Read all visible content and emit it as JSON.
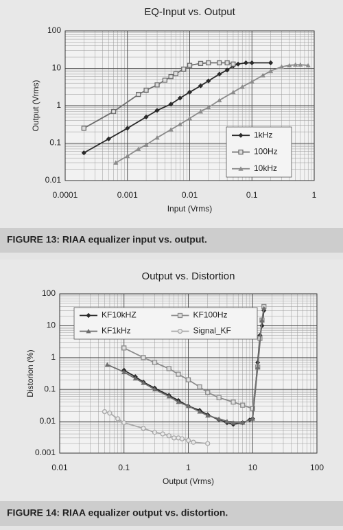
{
  "chart_data": [
    {
      "type": "line",
      "title": "EQ-Input vs. Output",
      "x_label": "Input (Vrms)",
      "y_label": "Output (Vrms)",
      "caption": "FIGURE 13: RIAA equalizer input vs. output.",
      "log_x": true,
      "log_y": true,
      "grid": true,
      "minor_grid": true,
      "legend": "lower-right",
      "xlim": [
        0.0001,
        1
      ],
      "xticks": [
        0.0001,
        0.001,
        0.01,
        0.1,
        1
      ],
      "ylim": [
        0.01,
        100
      ],
      "yticks": [
        0.01,
        0.1,
        1,
        10,
        100
      ],
      "series": [
        {
          "name": "1kHz",
          "color": "#2a2a2a",
          "marker": "diamond",
          "x": [
            0.0002,
            0.0005,
            0.001,
            0.002,
            0.003,
            0.005,
            0.007,
            0.01,
            0.015,
            0.02,
            0.03,
            0.04,
            0.05,
            0.06,
            0.08,
            0.1,
            0.2
          ],
          "values": [
            0.055,
            0.13,
            0.25,
            0.5,
            0.75,
            1.1,
            1.6,
            2.3,
            3.4,
            4.6,
            7,
            9,
            11.5,
            13,
            14,
            14,
            14
          ]
        },
        {
          "name": "100Hz",
          "color": "#6e6e6e",
          "marker": "square",
          "x": [
            0.0002,
            0.0006,
            0.0015,
            0.002,
            0.003,
            0.004,
            0.005,
            0.006,
            0.008,
            0.01,
            0.015,
            0.02,
            0.03,
            0.04,
            0.05
          ],
          "values": [
            0.25,
            0.7,
            2,
            2.6,
            3.6,
            4.8,
            6,
            7.2,
            9.5,
            12,
            13.5,
            14,
            14,
            14,
            13
          ]
        },
        {
          "name": "10kHz",
          "color": "#8c8c8c",
          "marker": "triangle",
          "x": [
            0.00065,
            0.001,
            0.0015,
            0.002,
            0.003,
            0.005,
            0.007,
            0.01,
            0.015,
            0.02,
            0.03,
            0.05,
            0.07,
            0.1,
            0.15,
            0.2,
            0.3,
            0.4,
            0.5,
            0.6,
            0.8
          ],
          "values": [
            0.03,
            0.045,
            0.07,
            0.09,
            0.14,
            0.23,
            0.32,
            0.46,
            0.7,
            0.9,
            1.4,
            2.3,
            3.2,
            4.4,
            6.5,
            8.5,
            11,
            12,
            12.5,
            12.5,
            12
          ]
        }
      ]
    },
    {
      "type": "line",
      "title": "Output vs. Distortion",
      "x_label": "Output (Vrms)",
      "y_label": "Distorion (%)",
      "caption": "FIGURE 14: RIAA equalizer output vs. distortion.",
      "log_x": true,
      "log_y": true,
      "grid": true,
      "minor_grid": true,
      "legend": "upper-left",
      "xlim": [
        0.01,
        100
      ],
      "xticks": [
        0.01,
        0.1,
        1,
        10,
        100
      ],
      "ylim": [
        0.001,
        100
      ],
      "yticks": [
        0.001,
        0.01,
        0.1,
        1,
        10,
        100
      ],
      "series": [
        {
          "name": "KF10kHZ",
          "color": "#2a2a2a",
          "marker": "diamond",
          "x": [
            0.1,
            0.15,
            0.2,
            0.3,
            0.5,
            0.7,
            1,
            1.5,
            2,
            3,
            4,
            5,
            7,
            9,
            10,
            12,
            13,
            14,
            15
          ],
          "values": [
            0.4,
            0.25,
            0.17,
            0.11,
            0.065,
            0.045,
            0.03,
            0.022,
            0.016,
            0.011,
            0.009,
            0.008,
            0.009,
            0.011,
            0.012,
            0.7,
            5,
            10,
            30
          ]
        },
        {
          "name": "KF100Hz",
          "color": "#8c8c8c",
          "marker": "square",
          "x": [
            0.1,
            0.2,
            0.3,
            0.5,
            0.7,
            1,
            1.5,
            2,
            3,
            5,
            7,
            10,
            12,
            13,
            14,
            15
          ],
          "values": [
            2,
            1,
            0.7,
            0.45,
            0.3,
            0.2,
            0.12,
            0.08,
            0.055,
            0.04,
            0.032,
            0.025,
            0.5,
            4,
            15,
            40
          ]
        },
        {
          "name": "KF1kHz",
          "color": "#6e6e6e",
          "marker": "triangle",
          "x": [
            0.055,
            0.1,
            0.15,
            0.2,
            0.3,
            0.5,
            0.7,
            1,
            1.5,
            2,
            3,
            4,
            5,
            7,
            10,
            12,
            14,
            15
          ],
          "values": [
            0.6,
            0.35,
            0.22,
            0.16,
            0.1,
            0.06,
            0.04,
            0.03,
            0.02,
            0.015,
            0.012,
            0.01,
            0.009,
            0.009,
            0.012,
            0.5,
            15,
            35
          ]
        },
        {
          "name": "Signal_KF",
          "color": "#a8a8a8",
          "marker": "circle",
          "x": [
            0.05,
            0.06,
            0.08,
            0.1,
            0.2,
            0.3,
            0.4,
            0.5,
            0.6,
            0.7,
            0.8,
            1,
            1.2,
            2
          ],
          "values": [
            0.02,
            0.018,
            0.012,
            0.009,
            0.006,
            0.0045,
            0.004,
            0.0035,
            0.003,
            0.003,
            0.0028,
            0.0025,
            0.0022,
            0.002
          ]
        }
      ]
    }
  ]
}
